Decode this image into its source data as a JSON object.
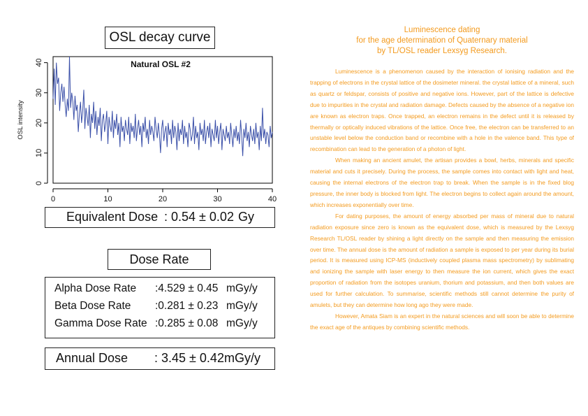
{
  "osl_panel": {
    "title": "OSL decay curve"
  },
  "chart_data": {
    "type": "line",
    "title": "Natural OSL #2",
    "xlabel": "",
    "ylabel": "OSL intensity",
    "xlim": [
      0,
      40
    ],
    "ylim": [
      0,
      42
    ],
    "xticks": [
      0,
      10,
      20,
      30,
      40
    ],
    "yticks": [
      0,
      10,
      20,
      30,
      40
    ],
    "color": "#3a4fa8",
    "x": [
      0,
      0.2,
      0.4,
      0.6,
      0.8,
      1,
      1.2,
      1.4,
      1.6,
      1.8,
      2,
      2.2,
      2.4,
      2.6,
      2.8,
      3,
      3.2,
      3.4,
      3.6,
      3.8,
      4,
      4.2,
      4.4,
      4.6,
      4.8,
      5,
      5.2,
      5.4,
      5.6,
      5.8,
      6,
      6.2,
      6.4,
      6.6,
      6.8,
      7,
      7.2,
      7.4,
      7.6,
      7.8,
      8,
      8.2,
      8.4,
      8.6,
      8.8,
      9,
      9.2,
      9.4,
      9.6,
      9.8,
      10,
      10.2,
      10.4,
      10.6,
      10.8,
      11,
      11.2,
      11.4,
      11.6,
      11.8,
      12,
      12.2,
      12.4,
      12.6,
      12.8,
      13,
      13.2,
      13.4,
      13.6,
      13.8,
      14,
      14.2,
      14.4,
      14.6,
      14.8,
      15,
      15.2,
      15.4,
      15.6,
      15.8,
      16,
      16.2,
      16.4,
      16.6,
      16.8,
      17,
      17.2,
      17.4,
      17.6,
      17.8,
      18,
      18.2,
      18.4,
      18.6,
      18.8,
      19,
      19.2,
      19.4,
      19.6,
      19.8,
      20,
      20.2,
      20.4,
      20.6,
      20.8,
      21,
      21.2,
      21.4,
      21.6,
      21.8,
      22,
      22.2,
      22.4,
      22.6,
      22.8,
      23,
      23.2,
      23.4,
      23.6,
      23.8,
      24,
      24.2,
      24.4,
      24.6,
      24.8,
      25,
      25.2,
      25.4,
      25.6,
      25.8,
      26,
      26.2,
      26.4,
      26.6,
      26.8,
      27,
      27.2,
      27.4,
      27.6,
      27.8,
      28,
      28.2,
      28.4,
      28.6,
      28.8,
      29,
      29.2,
      29.4,
      29.6,
      29.8,
      30,
      30.2,
      30.4,
      30.6,
      30.8,
      31,
      31.2,
      31.4,
      31.6,
      31.8,
      32,
      32.2,
      32.4,
      32.6,
      32.8,
      33,
      33.2,
      33.4,
      33.6,
      33.8,
      34,
      34.2,
      34.4,
      34.6,
      34.8,
      35,
      35.2,
      35.4,
      35.6,
      35.8,
      36,
      36.2,
      36.4,
      36.6,
      36.8,
      37,
      37.2,
      37.4,
      37.6,
      37.8,
      38,
      38.2,
      38.4,
      38.6,
      38.8,
      39,
      39.2,
      39.4,
      39.6,
      39.8,
      40
    ],
    "y": [
      28,
      38,
      26,
      40,
      33,
      35,
      24,
      30,
      33,
      27,
      32,
      26,
      22,
      28,
      24,
      42,
      25,
      30,
      27,
      21,
      29,
      24,
      26,
      17,
      23,
      27,
      20,
      24,
      31,
      18,
      25,
      22,
      19,
      26,
      15,
      23,
      20,
      27,
      18,
      24,
      16,
      22,
      19,
      25,
      14,
      21,
      23,
      17,
      20,
      24,
      13,
      22,
      19,
      17,
      24,
      15,
      21,
      18,
      23,
      16,
      20,
      12,
      22,
      17,
      19,
      14,
      21,
      18,
      16,
      22,
      13,
      20,
      17,
      19,
      15,
      23,
      14,
      18,
      21,
      16,
      19,
      12,
      20,
      17,
      22,
      15,
      18,
      13,
      21,
      16,
      19,
      17,
      14,
      22,
      18,
      15,
      20,
      16,
      10,
      18,
      21,
      14,
      17,
      19,
      12,
      20,
      16,
      18,
      13,
      21,
      15,
      19,
      17,
      11,
      20,
      14,
      18,
      16,
      21,
      13,
      19,
      15,
      17,
      12,
      20,
      18,
      14,
      16,
      22,
      13,
      19,
      15,
      17,
      11,
      20,
      16,
      18,
      14,
      21,
      13,
      17,
      19,
      15,
      20,
      12,
      18,
      16,
      14,
      21,
      15,
      19,
      13,
      17,
      20,
      11,
      18,
      16,
      14,
      19,
      15,
      17,
      13,
      20,
      16,
      12,
      18,
      15,
      19,
      14,
      17,
      13,
      21,
      16,
      9,
      18,
      15,
      20,
      14,
      17,
      12,
      19,
      16,
      14,
      18,
      13,
      20,
      15,
      17,
      11,
      19,
      14,
      25,
      15,
      18,
      13,
      17,
      16,
      12,
      19,
      15,
      17
    ]
  },
  "equivalent_dose": {
    "label": "Equivalent Dose",
    "value": ": 0.54 ± 0.02",
    "unit": "Gy"
  },
  "dose_rate": {
    "title": "Dose Rate",
    "rows": [
      {
        "name": "Alpha Dose Rate",
        "value": ":4.529 ± 0.45",
        "unit": "mGy/y"
      },
      {
        "name": "Beta Dose Rate",
        "value": ":0.281 ± 0.23",
        "unit": "mGy/y"
      },
      {
        "name": "Gamma Dose Rate",
        "value": ":0.285 ± 0.08",
        "unit": "mGy/y"
      }
    ]
  },
  "annual_dose": {
    "label": "Annual Dose",
    "value": ": 3.45 ± 0.42",
    "unit": "mGy/y"
  },
  "article": {
    "title_lines": [
      "Luminescence dating",
      "for the age determination of Quaternary material",
      "by TL/OSL reader Lexsyg Research."
    ],
    "paragraphs": [
      "Luminescence is a phenomenon caused by the interaction of ionising radiation and the trapping of electrons in the crystal lattice of the dosimeter mineral. the crystal lattice of a mineral, such as quartz or feldspar, consists of positive and negative ions. However, part of the lattice is defective due to impurities in the crystal and radiation damage. Defects caused by the absence of a negative ion are known as electron traps. Once trapped, an electron remains in the defect until it is released by thermally or optically induced vibrations of the lattice. Once free, the electron can be transferred to an unstable level below the conduction band or recombine with a hole in the valence band. This type of recombination can lead to the generation of a photon of light.",
      "When making an ancient amulet, the artisan provides a bowl, herbs, minerals and specific material and cuts it precisely. During the process, the sample comes into contact with light and heat, causing the internal electrons of the electron trap to break. When the sample is in the fixed blog pressure, the inner body is blocked from light. The electron begins to collect again around the amount, which increases exponentially over time.",
      "For dating purposes, the amount of energy absorbed per mass of mineral due to natural radiation exposure since zero is known as the equivalent dose, which is measured by the Lexsyg Research TL/OSL reader by shining a light directly on the sample and then measuring the emission over time. The annual dose is the amount of radiation a sample is exposed to per year during its burial period. It is measured using ICP-MS (inductively coupled plasma mass spectrometry) by sublimating and ionizing the sample with laser energy to then measure the ion current, which gives the exact proportion of radiation from the isotopes uranium, thorium and potassium, and then both values are used for further calculation. To summarise, scientific methods still cannot determine the purity of amulets, but they can determine how long ago they were made.",
      "However, Amata Siam is an expert in the natural sciences and will soon be able to determine the exact age of the antiques by combining scientific methods."
    ]
  }
}
